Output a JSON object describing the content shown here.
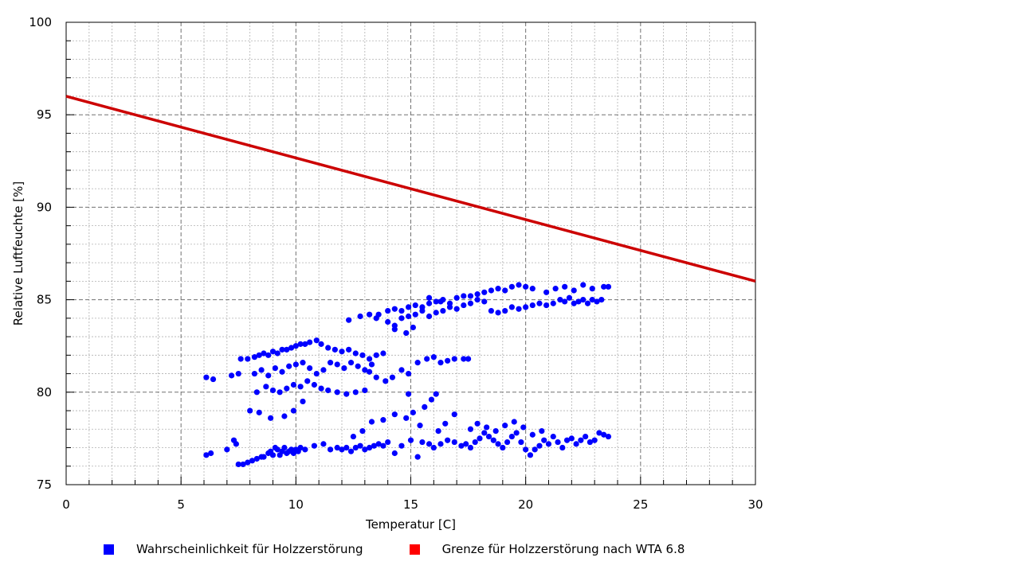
{
  "chart_data": {
    "type": "scatter",
    "xlabel": "Temperatur [C]",
    "ylabel": "Relative Luftfeuchte [%]",
    "xlim": [
      0,
      30
    ],
    "ylim": [
      75,
      100
    ],
    "x_ticks": [
      0,
      5,
      10,
      15,
      20,
      25,
      30
    ],
    "y_ticks": [
      75,
      80,
      85,
      90,
      95,
      100
    ],
    "grid": true,
    "legend_position": "bottom",
    "series": [
      {
        "name": "Wahrscheinlichkeit für Holzzerstörung",
        "color": "#0000ff",
        "type": "scatter",
        "points": [
          [
            6.1,
            76.6
          ],
          [
            6.3,
            76.7
          ],
          [
            7.0,
            76.9
          ],
          [
            7.3,
            77.4
          ],
          [
            7.4,
            77.2
          ],
          [
            7.5,
            76.1
          ],
          [
            7.7,
            76.1
          ],
          [
            7.9,
            76.2
          ],
          [
            8.1,
            76.3
          ],
          [
            8.3,
            76.4
          ],
          [
            8.5,
            76.5
          ],
          [
            8.6,
            76.5
          ],
          [
            8.8,
            76.7
          ],
          [
            8.9,
            76.8
          ],
          [
            9.0,
            76.6
          ],
          [
            9.1,
            77.0
          ],
          [
            9.2,
            76.9
          ],
          [
            9.3,
            76.6
          ],
          [
            9.4,
            76.8
          ],
          [
            9.5,
            77.0
          ],
          [
            9.6,
            76.7
          ],
          [
            9.7,
            76.8
          ],
          [
            9.8,
            76.9
          ],
          [
            9.9,
            76.7
          ],
          [
            10.0,
            76.9
          ],
          [
            10.1,
            76.8
          ],
          [
            10.2,
            77.0
          ],
          [
            10.4,
            76.9
          ],
          [
            10.8,
            77.1
          ],
          [
            11.2,
            77.2
          ],
          [
            11.5,
            76.9
          ],
          [
            11.8,
            77.0
          ],
          [
            12.0,
            76.9
          ],
          [
            12.2,
            77.0
          ],
          [
            12.4,
            76.8
          ],
          [
            12.6,
            77.0
          ],
          [
            12.8,
            77.1
          ],
          [
            13.0,
            76.9
          ],
          [
            13.2,
            77.0
          ],
          [
            13.4,
            77.1
          ],
          [
            13.6,
            77.2
          ],
          [
            13.8,
            77.1
          ],
          [
            14.0,
            77.3
          ],
          [
            14.3,
            76.7
          ],
          [
            14.6,
            77.1
          ],
          [
            15.0,
            77.4
          ],
          [
            15.3,
            76.5
          ],
          [
            15.5,
            77.3
          ],
          [
            15.8,
            77.2
          ],
          [
            16.0,
            77.0
          ],
          [
            16.3,
            77.2
          ],
          [
            16.6,
            77.4
          ],
          [
            16.9,
            77.3
          ],
          [
            17.2,
            77.1
          ],
          [
            17.4,
            77.2
          ],
          [
            17.6,
            77.0
          ],
          [
            17.8,
            77.3
          ],
          [
            18.0,
            77.5
          ],
          [
            18.2,
            77.8
          ],
          [
            18.4,
            77.6
          ],
          [
            18.6,
            77.4
          ],
          [
            18.8,
            77.2
          ],
          [
            19.0,
            77.0
          ],
          [
            19.2,
            77.3
          ],
          [
            19.4,
            77.6
          ],
          [
            19.6,
            77.8
          ],
          [
            19.8,
            77.3
          ],
          [
            20.0,
            76.9
          ],
          [
            20.2,
            76.6
          ],
          [
            20.4,
            76.9
          ],
          [
            20.6,
            77.1
          ],
          [
            20.8,
            77.4
          ],
          [
            21.0,
            77.2
          ],
          [
            21.2,
            77.6
          ],
          [
            21.4,
            77.3
          ],
          [
            21.6,
            77.0
          ],
          [
            21.8,
            77.4
          ],
          [
            22.0,
            77.5
          ],
          [
            22.2,
            77.2
          ],
          [
            22.4,
            77.4
          ],
          [
            22.6,
            77.6
          ],
          [
            22.8,
            77.3
          ],
          [
            23.0,
            77.4
          ],
          [
            23.2,
            77.8
          ],
          [
            23.4,
            77.7
          ],
          [
            23.6,
            77.6
          ],
          [
            17.6,
            78.0
          ],
          [
            17.9,
            78.3
          ],
          [
            18.3,
            78.1
          ],
          [
            18.7,
            77.9
          ],
          [
            19.1,
            78.2
          ],
          [
            19.5,
            78.4
          ],
          [
            19.9,
            78.1
          ],
          [
            20.3,
            77.7
          ],
          [
            20.7,
            77.9
          ],
          [
            16.2,
            77.9
          ],
          [
            16.5,
            78.3
          ],
          [
            16.9,
            78.8
          ],
          [
            15.9,
            79.6
          ],
          [
            15.6,
            79.2
          ],
          [
            14.8,
            78.6
          ],
          [
            14.3,
            78.8
          ],
          [
            13.8,
            78.5
          ],
          [
            13.3,
            78.4
          ],
          [
            12.9,
            77.9
          ],
          [
            12.5,
            77.6
          ],
          [
            15.1,
            78.9
          ],
          [
            15.4,
            78.2
          ],
          [
            16.1,
            79.9
          ],
          [
            14.9,
            79.9
          ],
          [
            6.1,
            80.8
          ],
          [
            6.4,
            80.7
          ],
          [
            7.2,
            80.9
          ],
          [
            7.5,
            81.0
          ],
          [
            7.6,
            81.8
          ],
          [
            7.9,
            81.8
          ],
          [
            8.2,
            81.9
          ],
          [
            8.4,
            82.0
          ],
          [
            8.6,
            82.1
          ],
          [
            8.8,
            82.0
          ],
          [
            9.0,
            82.2
          ],
          [
            9.2,
            82.1
          ],
          [
            9.4,
            82.3
          ],
          [
            9.6,
            82.3
          ],
          [
            9.8,
            82.4
          ],
          [
            10.0,
            82.5
          ],
          [
            10.2,
            82.6
          ],
          [
            10.4,
            82.6
          ],
          [
            10.6,
            82.7
          ],
          [
            10.9,
            82.8
          ],
          [
            11.1,
            82.6
          ],
          [
            11.4,
            82.4
          ],
          [
            11.7,
            82.3
          ],
          [
            12.0,
            82.2
          ],
          [
            12.3,
            82.3
          ],
          [
            12.6,
            82.1
          ],
          [
            12.9,
            82.0
          ],
          [
            13.2,
            81.8
          ],
          [
            13.5,
            82.0
          ],
          [
            13.8,
            82.1
          ],
          [
            8.2,
            81.0
          ],
          [
            8.5,
            81.2
          ],
          [
            8.8,
            80.9
          ],
          [
            9.1,
            81.3
          ],
          [
            9.4,
            81.1
          ],
          [
            9.7,
            81.4
          ],
          [
            10.0,
            81.5
          ],
          [
            10.3,
            81.6
          ],
          [
            10.6,
            81.3
          ],
          [
            10.9,
            81.0
          ],
          [
            11.2,
            81.2
          ],
          [
            11.5,
            81.6
          ],
          [
            11.8,
            81.5
          ],
          [
            12.1,
            81.3
          ],
          [
            12.4,
            81.6
          ],
          [
            12.7,
            81.4
          ],
          [
            13.0,
            81.2
          ],
          [
            13.3,
            81.5
          ],
          [
            8.3,
            80.0
          ],
          [
            8.7,
            80.3
          ],
          [
            9.0,
            80.1
          ],
          [
            9.3,
            80.0
          ],
          [
            9.6,
            80.2
          ],
          [
            9.9,
            80.4
          ],
          [
            10.2,
            80.3
          ],
          [
            10.5,
            80.6
          ],
          [
            10.8,
            80.4
          ],
          [
            11.1,
            80.2
          ],
          [
            11.4,
            80.1
          ],
          [
            11.8,
            80.0
          ],
          [
            12.2,
            79.9
          ],
          [
            12.6,
            80.0
          ],
          [
            13.0,
            80.1
          ],
          [
            8.0,
            79.0
          ],
          [
            8.4,
            78.9
          ],
          [
            8.9,
            78.6
          ],
          [
            9.5,
            78.7
          ],
          [
            9.9,
            79.0
          ],
          [
            10.3,
            79.5
          ],
          [
            13.2,
            81.1
          ],
          [
            13.5,
            80.8
          ],
          [
            13.9,
            80.6
          ],
          [
            14.2,
            80.8
          ],
          [
            14.6,
            81.2
          ],
          [
            14.9,
            81.0
          ],
          [
            15.3,
            81.6
          ],
          [
            15.7,
            81.8
          ],
          [
            16.0,
            81.9
          ],
          [
            16.3,
            81.6
          ],
          [
            16.6,
            81.7
          ],
          [
            16.9,
            81.8
          ],
          [
            17.3,
            81.8
          ],
          [
            17.5,
            81.8
          ],
          [
            12.3,
            83.9
          ],
          [
            12.8,
            84.1
          ],
          [
            13.2,
            84.2
          ],
          [
            13.6,
            84.2
          ],
          [
            14.0,
            84.4
          ],
          [
            14.3,
            84.5
          ],
          [
            14.6,
            84.4
          ],
          [
            14.9,
            84.6
          ],
          [
            15.2,
            84.7
          ],
          [
            15.5,
            84.6
          ],
          [
            15.8,
            84.8
          ],
          [
            16.1,
            84.9
          ],
          [
            16.4,
            85.0
          ],
          [
            16.7,
            84.8
          ],
          [
            17.0,
            85.1
          ],
          [
            17.3,
            85.2
          ],
          [
            17.6,
            85.2
          ],
          [
            17.9,
            85.3
          ],
          [
            18.2,
            85.4
          ],
          [
            18.5,
            85.5
          ],
          [
            18.8,
            85.6
          ],
          [
            19.1,
            85.5
          ],
          [
            19.4,
            85.7
          ],
          [
            19.7,
            85.8
          ],
          [
            20.0,
            85.7
          ],
          [
            20.3,
            85.6
          ],
          [
            14.0,
            83.8
          ],
          [
            14.3,
            83.6
          ],
          [
            14.6,
            84.0
          ],
          [
            14.9,
            84.1
          ],
          [
            15.2,
            84.2
          ],
          [
            15.5,
            84.4
          ],
          [
            15.8,
            84.1
          ],
          [
            16.1,
            84.3
          ],
          [
            16.4,
            84.4
          ],
          [
            16.7,
            84.6
          ],
          [
            17.0,
            84.5
          ],
          [
            17.3,
            84.7
          ],
          [
            17.6,
            84.8
          ],
          [
            17.9,
            85.0
          ],
          [
            18.2,
            84.9
          ],
          [
            18.5,
            84.4
          ],
          [
            18.8,
            84.3
          ],
          [
            19.1,
            84.4
          ],
          [
            19.4,
            84.6
          ],
          [
            19.7,
            84.5
          ],
          [
            20.0,
            84.6
          ],
          [
            20.3,
            84.7
          ],
          [
            20.6,
            84.8
          ],
          [
            20.9,
            84.7
          ],
          [
            21.2,
            84.8
          ],
          [
            21.5,
            85.0
          ],
          [
            21.7,
            84.9
          ],
          [
            21.9,
            85.1
          ],
          [
            22.1,
            84.8
          ],
          [
            22.3,
            84.9
          ],
          [
            22.5,
            85.0
          ],
          [
            22.7,
            84.8
          ],
          [
            22.9,
            85.0
          ],
          [
            23.1,
            84.9
          ],
          [
            23.3,
            85.0
          ],
          [
            20.9,
            85.4
          ],
          [
            21.3,
            85.6
          ],
          [
            21.7,
            85.7
          ],
          [
            22.1,
            85.5
          ],
          [
            22.5,
            85.8
          ],
          [
            22.9,
            85.6
          ],
          [
            23.4,
            85.7
          ],
          [
            23.6,
            85.7
          ],
          [
            14.3,
            83.4
          ],
          [
            14.8,
            83.2
          ],
          [
            15.1,
            83.5
          ],
          [
            13.5,
            84.0
          ],
          [
            15.8,
            85.1
          ],
          [
            16.3,
            84.9
          ]
        ]
      },
      {
        "name": "Grenze für Holzzerstörung nach WTA 6.8",
        "color": "#cc0000",
        "type": "line",
        "x": [
          0,
          30
        ],
        "y": [
          96,
          86
        ]
      }
    ]
  }
}
